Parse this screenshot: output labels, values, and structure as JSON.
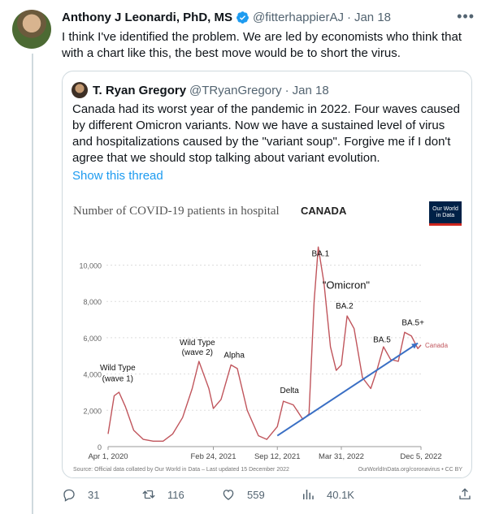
{
  "tweet": {
    "author_name": "Anthony J Leonardi, PhD, MS",
    "handle": "@fitterhappierAJ",
    "separator": "·",
    "date": "Jan 18",
    "text": "I think I've identified the problem. We are led by economists who think that with a chart like this, the best move would be to short the virus.",
    "more_icon": "more-icon"
  },
  "quote": {
    "author_name": "T. Ryan Gregory",
    "handle": "@TRyanGregory",
    "separator": "·",
    "date": "Jan 18",
    "text": "Canada had its worst year of the pandemic in 2022. Four waves caused by different Omicron variants. Now we have a sustained level of virus and hospitalizations caused by the \"variant soup\". Forgive me if I don't agree that we should stop talking about variant evolution.",
    "show_thread": "Show this thread"
  },
  "actions": {
    "replies": "31",
    "retweets": "116",
    "likes": "559",
    "views": "40.1K"
  },
  "colors": {
    "accent": "#1d9bf0",
    "line": "#c0555c",
    "trend": "#3a6fc4",
    "owid": "#002147"
  },
  "chart_data": {
    "type": "line",
    "title": "Number of COVID-19 patients in hospital",
    "country": "CANADA",
    "logo_text": [
      "Our World",
      "in Data"
    ],
    "series": [
      {
        "name": "Canada",
        "x": [
          "2020-04-01",
          "2020-04-20",
          "2020-05-05",
          "2020-05-25",
          "2020-06-20",
          "2020-07-20",
          "2020-08-20",
          "2020-09-20",
          "2020-10-20",
          "2020-11-20",
          "2020-12-20",
          "2021-01-10",
          "2021-02-10",
          "2021-02-24",
          "2021-03-20",
          "2021-04-20",
          "2021-05-10",
          "2021-06-10",
          "2021-07-15",
          "2021-08-10",
          "2021-09-12",
          "2021-10-01",
          "2021-11-01",
          "2021-12-01",
          "2021-12-20",
          "2022-01-05",
          "2022-01-18",
          "2022-02-05",
          "2022-02-25",
          "2022-03-15",
          "2022-03-31",
          "2022-04-18",
          "2022-05-10",
          "2022-06-05",
          "2022-07-01",
          "2022-07-20",
          "2022-08-10",
          "2022-09-01",
          "2022-09-25",
          "2022-10-15",
          "2022-11-05",
          "2022-11-25",
          "2022-12-05"
        ],
        "y": [
          700,
          2800,
          3000,
          2200,
          900,
          400,
          300,
          300,
          700,
          1600,
          3200,
          4700,
          3200,
          2100,
          2600,
          4500,
          4300,
          2000,
          600,
          400,
          1100,
          2500,
          2300,
          1500,
          1800,
          8000,
          11000,
          9000,
          5500,
          4200,
          4500,
          7200,
          6500,
          3800,
          3200,
          4200,
          5500,
          4800,
          4700,
          6300,
          6100,
          5400,
          5600
        ]
      }
    ],
    "trend": {
      "from": [
        "2021-09-12",
        600
      ],
      "to": [
        "2022-11-25",
        5700
      ]
    },
    "annotations": [
      {
        "text": "Wild Type",
        "x": "2020-05-01",
        "y": 4200
      },
      {
        "text": "(wave 1)",
        "x": "2020-05-01",
        "y": 3600
      },
      {
        "text": "Wild Type",
        "x": "2021-01-05",
        "y": 5600
      },
      {
        "text": "(wave 2)",
        "x": "2021-01-05",
        "y": 5050
      },
      {
        "text": "Alpha",
        "x": "2021-04-30",
        "y": 4900
      },
      {
        "text": "Delta",
        "x": "2021-10-20",
        "y": 2950
      },
      {
        "text": "BA.1",
        "x": "2022-01-25",
        "y": 10500
      },
      {
        "text": "\"Omicron\"",
        "x": "2022-04-15",
        "y": 8700
      },
      {
        "text": "BA.2",
        "x": "2022-04-10",
        "y": 7600
      },
      {
        "text": "BA.5",
        "x": "2022-08-05",
        "y": 5750
      },
      {
        "text": "BA.5+",
        "x": "2022-11-10",
        "y": 6700
      }
    ],
    "ylim": [
      0,
      11500
    ],
    "yticks": [
      0,
      2000,
      4000,
      6000,
      8000,
      10000
    ],
    "ytick_labels": [
      "0",
      "2,000",
      "4,000",
      "6,000",
      "8,000",
      "10,000"
    ],
    "xticks": [
      "2020-04-01",
      "2021-02-24",
      "2021-09-12",
      "2022-03-31",
      "2022-12-05"
    ],
    "xtick_labels": [
      "Apr 1, 2020",
      "Feb 24, 2021",
      "Sep 12, 2021",
      "Mar 31, 2022",
      "Dec 5, 2022"
    ],
    "grid": "horizontal-dotted",
    "source": "Source: Official data collated by Our World in Data – Last updated 15 December 2022",
    "credit": "OurWorldInData.org/coronavirus • CC BY"
  }
}
